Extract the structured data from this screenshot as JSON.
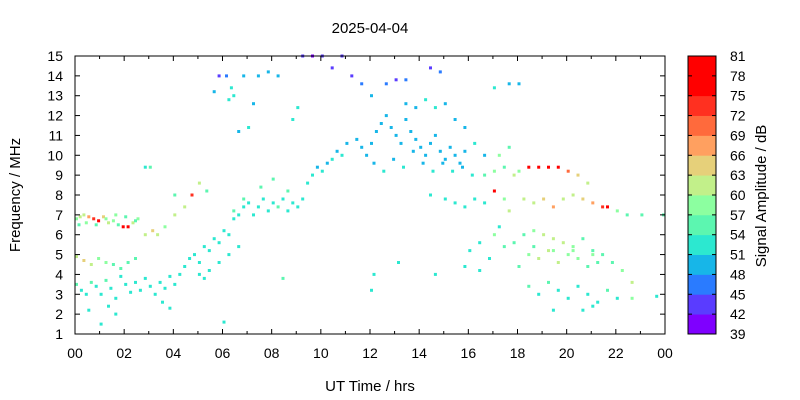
{
  "chart_data": {
    "type": "scatter",
    "title": "2025-04-04",
    "xlabel": "UT Time / hrs",
    "ylabel": "Frequency / MHz",
    "colorbar_label": "Signal Amplitude / dB",
    "xlim": [
      0,
      24
    ],
    "ylim": [
      1,
      15
    ],
    "x_ticks": [
      "00",
      "02",
      "04",
      "06",
      "08",
      "10",
      "12",
      "14",
      "16",
      "18",
      "20",
      "22",
      "00"
    ],
    "y_ticks": [
      "1",
      "2",
      "3",
      "4",
      "5",
      "6",
      "7",
      "8",
      "9",
      "10",
      "11",
      "12",
      "13",
      "14",
      "15"
    ],
    "colorbar_ticks": [
      "39",
      "42",
      "45",
      "48",
      "51",
      "54",
      "57",
      "60",
      "63",
      "66",
      "69",
      "72",
      "75",
      "78",
      "81"
    ],
    "colorbar_range": [
      39,
      81
    ],
    "colorbar_colors": [
      "#7f00ff",
      "#5a3cff",
      "#2a7bff",
      "#17b6e8",
      "#2ce8d0",
      "#5cf6b0",
      "#8cffa0",
      "#c2f08a",
      "#e6d07a",
      "#ffa060",
      "#ff6a3c",
      "#ff3020",
      "#ff0000",
      "#ff0000"
    ],
    "grid": false,
    "points": [
      [
        0.0,
        6.8,
        58
      ],
      [
        0.15,
        6.9,
        60
      ],
      [
        0.3,
        7.0,
        62
      ],
      [
        0.5,
        6.9,
        66
      ],
      [
        0.7,
        6.8,
        73
      ],
      [
        0.9,
        6.7,
        76
      ],
      [
        1.1,
        6.9,
        64
      ],
      [
        1.3,
        6.6,
        60
      ],
      [
        1.5,
        6.7,
        58
      ],
      [
        1.7,
        6.5,
        56
      ],
      [
        1.9,
        6.4,
        78
      ],
      [
        2.1,
        6.4,
        77
      ],
      [
        2.3,
        6.6,
        62
      ],
      [
        2.5,
        6.8,
        58
      ],
      [
        0.1,
        6.5,
        55
      ],
      [
        0.4,
        6.6,
        57
      ],
      [
        0.8,
        6.5,
        56
      ],
      [
        1.2,
        6.8,
        59
      ],
      [
        1.6,
        7.0,
        57
      ],
      [
        2.0,
        6.9,
        55
      ],
      [
        2.4,
        6.7,
        56
      ],
      [
        0.0,
        4.9,
        62
      ],
      [
        0.3,
        4.7,
        64
      ],
      [
        0.6,
        4.5,
        60
      ],
      [
        0.9,
        4.8,
        58
      ],
      [
        1.2,
        4.6,
        57
      ],
      [
        1.5,
        4.5,
        56
      ],
      [
        1.8,
        4.3,
        55
      ],
      [
        2.1,
        4.6,
        54
      ],
      [
        2.4,
        4.8,
        56
      ],
      [
        0.0,
        3.5,
        54
      ],
      [
        0.2,
        3.2,
        52
      ],
      [
        0.4,
        3.0,
        53
      ],
      [
        0.6,
        3.6,
        55
      ],
      [
        0.8,
        3.4,
        52
      ],
      [
        1.0,
        3.0,
        53
      ],
      [
        1.2,
        3.7,
        54
      ],
      [
        1.4,
        3.3,
        51
      ],
      [
        1.6,
        2.8,
        52
      ],
      [
        1.8,
        3.9,
        53
      ],
      [
        2.0,
        3.5,
        52
      ],
      [
        2.2,
        3.1,
        51
      ],
      [
        2.4,
        3.6,
        53
      ],
      [
        2.6,
        3.2,
        52
      ],
      [
        2.8,
        3.8,
        52
      ],
      [
        3.0,
        3.4,
        51
      ],
      [
        3.2,
        3.0,
        52
      ],
      [
        3.4,
        3.6,
        53
      ],
      [
        3.6,
        3.3,
        51
      ],
      [
        3.8,
        3.9,
        52
      ],
      [
        4.0,
        3.5,
        52
      ],
      [
        0.5,
        2.2,
        52
      ],
      [
        1.0,
        1.5,
        53
      ],
      [
        1.3,
        2.4,
        51
      ],
      [
        1.6,
        2.0,
        52
      ],
      [
        3.5,
        2.6,
        52
      ],
      [
        3.8,
        2.3,
        51
      ],
      [
        2.8,
        6.0,
        60
      ],
      [
        3.1,
        6.2,
        64
      ],
      [
        3.3,
        6.0,
        62
      ],
      [
        3.6,
        6.4,
        58
      ],
      [
        4.0,
        7.0,
        60
      ],
      [
        4.4,
        7.4,
        62
      ],
      [
        4.7,
        8.0,
        74
      ],
      [
        5.0,
        8.6,
        60
      ],
      [
        5.3,
        8.2,
        56
      ],
      [
        4.2,
        4.0,
        53
      ],
      [
        4.4,
        4.4,
        52
      ],
      [
        4.6,
        4.8,
        51
      ],
      [
        4.8,
        5.0,
        52
      ],
      [
        5.0,
        4.6,
        53
      ],
      [
        5.2,
        5.4,
        52
      ],
      [
        5.4,
        5.2,
        51
      ],
      [
        5.6,
        5.8,
        52
      ],
      [
        5.8,
        5.6,
        53
      ],
      [
        6.0,
        6.2,
        52
      ],
      [
        6.2,
        6.0,
        51
      ],
      [
        6.4,
        6.8,
        52
      ],
      [
        6.6,
        7.0,
        53
      ],
      [
        6.8,
        7.4,
        52
      ],
      [
        7.0,
        7.6,
        51
      ],
      [
        5.0,
        4.0,
        52
      ],
      [
        5.4,
        4.2,
        53
      ],
      [
        5.8,
        4.6,
        52
      ],
      [
        6.2,
        5.0,
        51
      ],
      [
        6.6,
        5.4,
        52
      ],
      [
        5.2,
        3.8,
        52
      ],
      [
        6.0,
        1.6,
        52
      ],
      [
        6.4,
        7.2,
        54
      ],
      [
        6.8,
        7.8,
        54
      ],
      [
        7.2,
        7.0,
        52
      ],
      [
        7.4,
        7.4,
        53
      ],
      [
        7.6,
        7.8,
        52
      ],
      [
        7.8,
        7.2,
        51
      ],
      [
        8.0,
        7.6,
        52
      ],
      [
        8.2,
        7.4,
        54
      ],
      [
        8.4,
        7.8,
        52
      ],
      [
        8.6,
        7.2,
        53
      ],
      [
        8.8,
        7.6,
        52
      ],
      [
        9.0,
        7.4,
        51
      ],
      [
        9.2,
        7.8,
        52
      ],
      [
        7.5,
        8.4,
        55
      ],
      [
        8.0,
        8.8,
        56
      ],
      [
        8.6,
        8.2,
        55
      ],
      [
        9.4,
        8.6,
        52
      ],
      [
        9.6,
        9.0,
        51
      ],
      [
        9.8,
        9.4,
        50
      ],
      [
        10.0,
        9.2,
        51
      ],
      [
        10.2,
        9.6,
        50
      ],
      [
        10.4,
        9.8,
        52
      ],
      [
        10.6,
        10.2,
        50
      ],
      [
        10.8,
        10.0,
        51
      ],
      [
        11.0,
        10.6,
        50
      ],
      [
        6.6,
        11.2,
        50
      ],
      [
        7.0,
        11.4,
        51
      ],
      [
        8.8,
        11.8,
        51
      ],
      [
        9.0,
        12.4,
        52
      ],
      [
        7.2,
        12.6,
        50
      ],
      [
        6.4,
        13.0,
        51
      ],
      [
        6.2,
        12.8,
        52
      ],
      [
        5.6,
        13.2,
        48
      ],
      [
        5.8,
        14.0,
        44
      ],
      [
        6.1,
        14.0,
        45
      ],
      [
        6.3,
        13.4,
        51
      ],
      [
        6.8,
        14.0,
        49
      ],
      [
        7.4,
        14.0,
        50
      ],
      [
        7.8,
        14.2,
        48
      ],
      [
        8.2,
        14.0,
        49
      ],
      [
        9.2,
        15.0,
        42
      ],
      [
        9.6,
        15.0,
        41
      ],
      [
        10.0,
        15.0,
        43
      ],
      [
        10.4,
        14.4,
        44
      ],
      [
        10.8,
        15.0,
        42
      ],
      [
        11.2,
        14.0,
        44
      ],
      [
        11.6,
        13.6,
        46
      ],
      [
        12.0,
        13.0,
        48
      ],
      [
        12.6,
        13.6,
        46
      ],
      [
        13.0,
        13.8,
        44
      ],
      [
        13.4,
        13.8,
        45
      ],
      [
        14.4,
        14.4,
        44
      ],
      [
        14.8,
        14.2,
        46
      ],
      [
        17.0,
        13.4,
        51
      ],
      [
        17.6,
        13.6,
        50
      ],
      [
        18.0,
        13.6,
        48
      ],
      [
        11.4,
        10.8,
        48
      ],
      [
        11.6,
        10.4,
        50
      ],
      [
        11.8,
        10.0,
        49
      ],
      [
        12.0,
        10.6,
        48
      ],
      [
        12.2,
        11.2,
        50
      ],
      [
        12.4,
        11.6,
        49
      ],
      [
        12.6,
        12.0,
        48
      ],
      [
        12.8,
        11.4,
        50
      ],
      [
        13.0,
        11.0,
        49
      ],
      [
        13.2,
        10.6,
        48
      ],
      [
        13.4,
        11.8,
        50
      ],
      [
        13.6,
        11.2,
        49
      ],
      [
        13.8,
        10.8,
        48
      ],
      [
        14.0,
        10.4,
        50
      ],
      [
        14.2,
        10.0,
        49
      ],
      [
        14.4,
        10.6,
        48
      ],
      [
        14.6,
        11.0,
        50
      ],
      [
        14.8,
        10.2,
        49
      ],
      [
        15.0,
        9.8,
        48
      ],
      [
        15.2,
        10.4,
        50
      ],
      [
        15.4,
        10.0,
        49
      ],
      [
        15.6,
        9.6,
        48
      ],
      [
        15.8,
        10.2,
        50
      ],
      [
        12.1,
        9.6,
        50
      ],
      [
        12.5,
        9.2,
        51
      ],
      [
        12.9,
        9.8,
        50
      ],
      [
        13.3,
        9.4,
        51
      ],
      [
        13.7,
        10.2,
        49
      ],
      [
        14.1,
        9.6,
        50
      ],
      [
        14.5,
        9.2,
        51
      ],
      [
        14.9,
        9.6,
        50
      ],
      [
        15.3,
        9.2,
        51
      ],
      [
        15.7,
        9.4,
        50
      ],
      [
        16.1,
        9.0,
        51
      ],
      [
        13.4,
        12.6,
        48
      ],
      [
        13.8,
        12.4,
        50
      ],
      [
        14.2,
        12.8,
        51
      ],
      [
        14.6,
        12.4,
        52
      ],
      [
        15.0,
        12.6,
        50
      ],
      [
        15.4,
        11.8,
        49
      ],
      [
        15.8,
        11.4,
        50
      ],
      [
        16.2,
        10.6,
        52
      ],
      [
        16.6,
        10.0,
        50
      ],
      [
        14.4,
        8.0,
        51
      ],
      [
        15.0,
        7.8,
        52
      ],
      [
        15.4,
        7.6,
        51
      ],
      [
        15.8,
        7.4,
        52
      ],
      [
        16.2,
        7.8,
        51
      ],
      [
        16.6,
        7.6,
        52
      ],
      [
        17.0,
        8.2,
        78
      ],
      [
        17.4,
        7.8,
        58
      ],
      [
        17.6,
        7.2,
        60
      ],
      [
        16.6,
        9.0,
        56
      ],
      [
        17.0,
        9.2,
        58
      ],
      [
        17.4,
        9.4,
        56
      ],
      [
        17.8,
        9.0,
        60
      ],
      [
        18.0,
        9.2,
        58
      ],
      [
        18.4,
        9.4,
        76
      ],
      [
        18.8,
        9.4,
        80
      ],
      [
        19.2,
        9.4,
        78
      ],
      [
        19.6,
        9.4,
        79
      ],
      [
        20.0,
        9.2,
        70
      ],
      [
        20.4,
        9.0,
        64
      ],
      [
        20.8,
        8.6,
        60
      ],
      [
        17.2,
        10.0,
        58
      ],
      [
        17.6,
        10.4,
        56
      ],
      [
        18.2,
        7.8,
        62
      ],
      [
        18.6,
        7.6,
        60
      ],
      [
        19.0,
        7.8,
        64
      ],
      [
        19.4,
        7.4,
        66
      ],
      [
        19.8,
        7.8,
        60
      ],
      [
        20.2,
        8.0,
        62
      ],
      [
        20.6,
        7.8,
        64
      ],
      [
        21.0,
        7.6,
        66
      ],
      [
        21.4,
        7.4,
        74
      ],
      [
        21.6,
        7.4,
        76
      ],
      [
        22.0,
        7.2,
        58
      ],
      [
        22.4,
        7.0,
        56
      ],
      [
        23.0,
        7.0,
        54
      ],
      [
        17.0,
        6.0,
        58
      ],
      [
        17.4,
        5.4,
        56
      ],
      [
        17.8,
        5.6,
        54
      ],
      [
        18.2,
        6.0,
        56
      ],
      [
        18.6,
        6.2,
        58
      ],
      [
        19.0,
        6.0,
        60
      ],
      [
        19.4,
        5.8,
        62
      ],
      [
        19.8,
        5.6,
        60
      ],
      [
        20.2,
        5.4,
        58
      ],
      [
        20.6,
        5.8,
        56
      ],
      [
        21.0,
        5.2,
        55
      ],
      [
        21.4,
        5.0,
        54
      ],
      [
        21.8,
        4.6,
        56
      ],
      [
        22.2,
        4.2,
        58
      ],
      [
        22.6,
        3.6,
        60
      ],
      [
        18.4,
        5.0,
        58
      ],
      [
        18.8,
        4.8,
        60
      ],
      [
        19.2,
        5.2,
        62
      ],
      [
        19.6,
        4.6,
        61
      ],
      [
        20.0,
        5.0,
        59
      ],
      [
        20.4,
        4.8,
        57
      ],
      [
        20.8,
        4.4,
        56
      ],
      [
        21.2,
        4.6,
        55
      ],
      [
        18.6,
        5.4,
        56
      ],
      [
        19.4,
        5.2,
        57
      ],
      [
        20.2,
        5.2,
        58
      ],
      [
        21.0,
        5.0,
        57
      ],
      [
        18.0,
        4.4,
        56
      ],
      [
        18.4,
        3.4,
        54
      ],
      [
        18.8,
        3.0,
        53
      ],
      [
        19.2,
        3.6,
        54
      ],
      [
        19.6,
        3.2,
        52
      ],
      [
        20.0,
        2.8,
        53
      ],
      [
        20.4,
        3.4,
        52
      ],
      [
        20.8,
        3.0,
        53
      ],
      [
        21.2,
        2.6,
        52
      ],
      [
        21.6,
        3.2,
        54
      ],
      [
        22.0,
        2.8,
        52
      ],
      [
        19.4,
        2.2,
        52
      ],
      [
        20.6,
        2.2,
        53
      ],
      [
        21.0,
        2.4,
        52
      ],
      [
        16.0,
        5.2,
        52
      ],
      [
        16.4,
        5.6,
        53
      ],
      [
        16.8,
        4.8,
        52
      ],
      [
        17.2,
        6.4,
        52
      ],
      [
        15.8,
        4.4,
        51
      ],
      [
        16.4,
        4.2,
        52
      ],
      [
        22.6,
        2.8,
        58
      ],
      [
        23.6,
        2.9,
        52
      ],
      [
        24.0,
        7.0,
        54
      ],
      [
        3.0,
        9.4,
        54
      ],
      [
        2.8,
        9.4,
        53
      ],
      [
        4.0,
        8.0,
        56
      ],
      [
        12.0,
        3.2,
        53
      ],
      [
        12.1,
        4.0,
        52
      ],
      [
        8.4,
        3.8,
        54
      ],
      [
        14.6,
        4.0,
        52
      ],
      [
        13.1,
        4.6,
        52
      ]
    ]
  }
}
